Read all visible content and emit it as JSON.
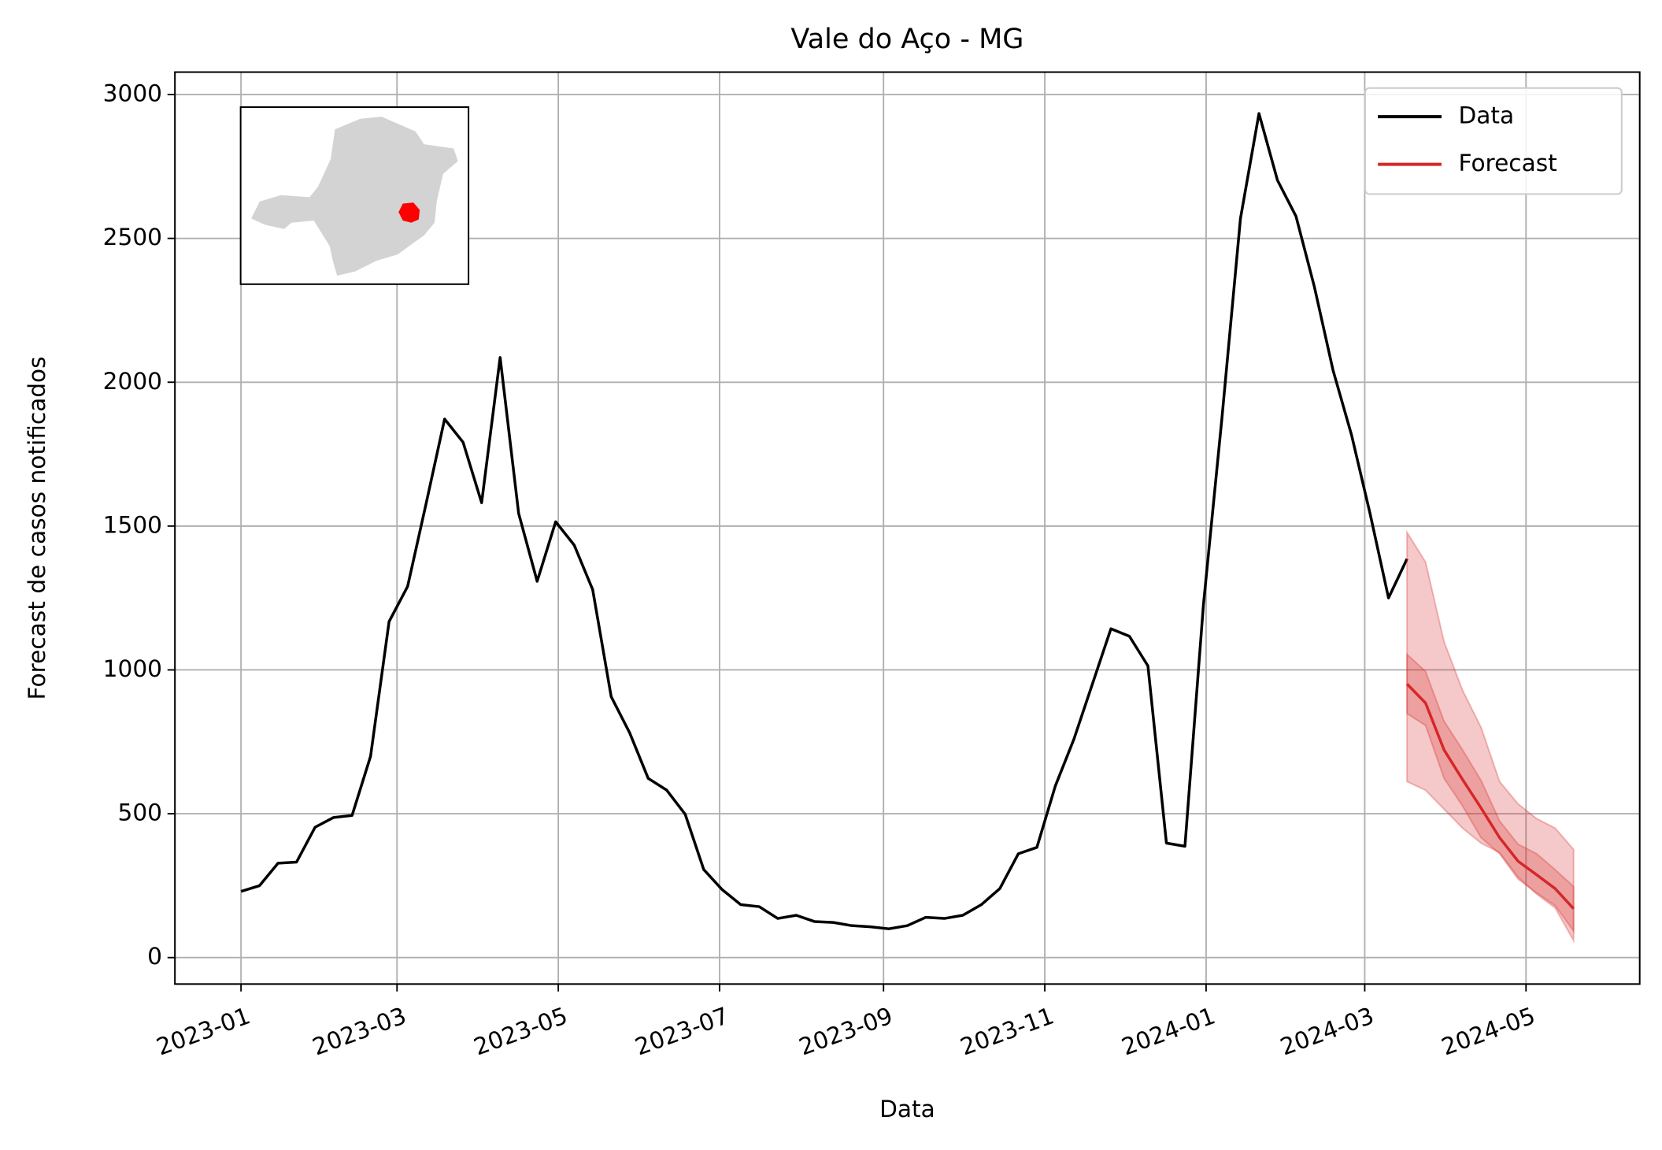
{
  "chart_data": {
    "type": "line",
    "title": "Vale do Aço - MG",
    "xlabel": "Data",
    "ylabel": "Forecast de casos notificados",
    "xlim": [
      "2022-12-07",
      "2024-06-13"
    ],
    "xticks": [
      "2023-01",
      "2023-03",
      "2023-05",
      "2023-07",
      "2023-09",
      "2023-11",
      "2024-01",
      "2024-03",
      "2024-05"
    ],
    "ylim": [
      -92,
      3078
    ],
    "yticks": [
      0,
      500,
      1000,
      1500,
      2000,
      2500,
      3000
    ],
    "grid": true,
    "legend": "upper right",
    "series": [
      {
        "name": "Data",
        "color": "#000000",
        "x": [
          "2023-01-01",
          "2023-01-08",
          "2023-01-15",
          "2023-01-22",
          "2023-01-29",
          "2023-02-05",
          "2023-02-12",
          "2023-02-19",
          "2023-02-26",
          "2023-03-05",
          "2023-03-12",
          "2023-03-19",
          "2023-03-26",
          "2023-04-02",
          "2023-04-09",
          "2023-04-16",
          "2023-04-23",
          "2023-04-30",
          "2023-05-07",
          "2023-05-14",
          "2023-05-21",
          "2023-05-28",
          "2023-06-04",
          "2023-06-11",
          "2023-06-18",
          "2023-06-25",
          "2023-07-02",
          "2023-07-09",
          "2023-07-16",
          "2023-07-23",
          "2023-07-30",
          "2023-08-06",
          "2023-08-13",
          "2023-08-20",
          "2023-08-27",
          "2023-09-03",
          "2023-09-10",
          "2023-09-17",
          "2023-09-24",
          "2023-10-01",
          "2023-10-08",
          "2023-10-15",
          "2023-10-22",
          "2023-10-29",
          "2023-11-05",
          "2023-11-12",
          "2023-11-19",
          "2023-11-26",
          "2023-12-03",
          "2023-12-10",
          "2023-12-17",
          "2023-12-24",
          "2023-12-31",
          "2024-01-07",
          "2024-01-14",
          "2024-01-21",
          "2024-01-28",
          "2024-02-04",
          "2024-02-11",
          "2024-02-18",
          "2024-02-25",
          "2024-03-03",
          "2024-03-10",
          "2024-03-17"
        ],
        "values": [
          230,
          250,
          328,
          332,
          453,
          487,
          494,
          700,
          1168,
          1290,
          1578,
          1872,
          1791,
          1581,
          2086,
          1544,
          1308,
          1515,
          1434,
          1279,
          907,
          781,
          623,
          582,
          498,
          306,
          236,
          184,
          177,
          136,
          147,
          125,
          122,
          111,
          107,
          100,
          111,
          140,
          136,
          147,
          184,
          240,
          361,
          383,
          597,
          759,
          951,
          1143,
          1117,
          1014,
          398,
          387,
          1227,
          1876,
          2569,
          2934,
          2702,
          2577,
          2330,
          2042,
          1817,
          1544,
          1250,
          1386
        ]
      },
      {
        "name": "Forecast",
        "color": "#d62728",
        "x": [
          "2024-03-17",
          "2024-03-24",
          "2024-03-31",
          "2024-04-07",
          "2024-04-14",
          "2024-04-21",
          "2024-04-28",
          "2024-05-05",
          "2024-05-12",
          "2024-05-19"
        ],
        "values": [
          951,
          885,
          722,
          619,
          520,
          417,
          335,
          288,
          240,
          170
        ],
        "bands": [
          {
            "lower": [
              612,
              582,
              516,
              450,
              398,
              365,
              280,
              221,
              173,
              59
            ],
            "upper": [
              1478,
              1375,
              1098,
              929,
              800,
              612,
              534,
              483,
              450,
              376
            ]
          },
          {
            "lower": [
              848,
              807,
              623,
              527,
              417,
              361,
              273,
              225,
              181,
              92
            ],
            "upper": [
              1054,
              995,
              822,
              722,
              616,
              475,
              394,
              361,
              306,
              247
            ]
          }
        ]
      }
    ]
  }
}
